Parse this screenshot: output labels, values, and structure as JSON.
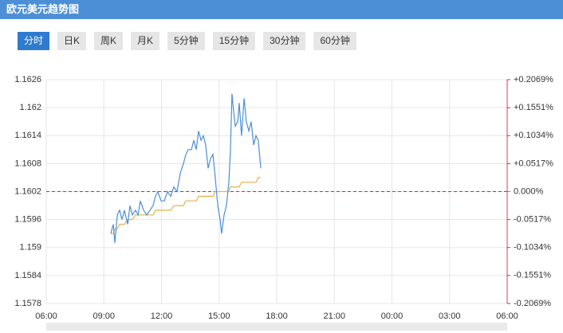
{
  "chart_data": {
    "type": "line",
    "title": "欧元美元趋势图",
    "tabs": [
      "分时",
      "日K",
      "周K",
      "月K",
      "5分钟",
      "15分钟",
      "30分钟",
      "60分钟"
    ],
    "active_tab": 0,
    "x": [
      3.36,
      3.49,
      3.57,
      3.7,
      3.82,
      3.94,
      4.07,
      4.24,
      4.36,
      4.48,
      4.65,
      4.78,
      4.9,
      5.07,
      5.23,
      5.4,
      5.56,
      5.69,
      5.81,
      5.98,
      6.15,
      6.31,
      6.48,
      6.64,
      6.81,
      6.98,
      7.14,
      7.27,
      7.39,
      7.56,
      7.68,
      7.81,
      7.93,
      8.06,
      8.18,
      8.3,
      8.43,
      8.55,
      8.68,
      8.8,
      8.93,
      9.05,
      9.13,
      9.26,
      9.38,
      9.51,
      9.59,
      9.67,
      9.76,
      9.84,
      9.97,
      10.05,
      10.17,
      10.3,
      10.42,
      10.55,
      10.67,
      10.8,
      10.92,
      11.04,
      11.17
    ],
    "series": [
      {
        "color": "#4a8fd8",
        "values": [
          1.1593,
          1.1595,
          1.1591,
          1.1597,
          1.1598,
          1.1596,
          1.1598,
          1.1595,
          1.1599,
          1.1597,
          1.1598,
          1.1597,
          1.16,
          1.1598,
          1.1597,
          1.1598,
          1.1599,
          1.1601,
          1.1602,
          1.16,
          1.16,
          1.1602,
          1.1601,
          1.1603,
          1.1602,
          1.1606,
          1.1608,
          1.161,
          1.1611,
          1.1611,
          1.1613,
          1.1611,
          1.1615,
          1.1613,
          1.1614,
          1.1612,
          1.1607,
          1.1609,
          1.161,
          1.1605,
          1.1599,
          1.1596,
          1.1593,
          1.1597,
          1.1599,
          1.1604,
          1.1611,
          1.1623,
          1.1619,
          1.1616,
          1.1617,
          1.1621,
          1.1614,
          1.1622,
          1.1617,
          1.1615,
          1.1617,
          1.1612,
          1.1614,
          1.1613,
          1.1607
        ]
      },
      {
        "color": "#e8b04a",
        "values": [
          1.1593,
          1.1593,
          1.1594,
          1.1594,
          1.1595,
          1.1595,
          1.1595,
          1.1596,
          1.1596,
          1.1596,
          1.1597,
          1.1597,
          1.1597,
          1.1597,
          1.1597,
          1.1597,
          1.1597,
          1.1598,
          1.1598,
          1.1598,
          1.1598,
          1.1598,
          1.1598,
          1.1599,
          1.1599,
          1.1599,
          1.1599,
          1.16,
          1.16,
          1.16,
          1.16,
          1.16,
          1.1601,
          1.1601,
          1.1601,
          1.1601,
          1.1601,
          1.1601,
          1.1601,
          1.1602,
          1.1602,
          1.1602,
          1.1602,
          1.1602,
          1.1602,
          1.1602,
          1.1603,
          1.1603,
          1.1603,
          1.1603,
          1.1603,
          1.1603,
          1.1604,
          1.1604,
          1.1604,
          1.1604,
          1.1604,
          1.1604,
          1.1604,
          1.1605,
          1.1605
        ]
      }
    ],
    "reference_line": 1.1602,
    "reference_color": "#d9262c",
    "xlim": [
      0,
      24
    ],
    "xticks": [
      {
        "value": 0,
        "label": "06:00"
      },
      {
        "value": 3,
        "label": "09:00"
      },
      {
        "value": 6,
        "label": "12:00"
      },
      {
        "value": 9,
        "label": "15:00"
      },
      {
        "value": 12,
        "label": "18:00"
      },
      {
        "value": 15,
        "label": "21:00"
      },
      {
        "value": 18,
        "label": "00:00"
      },
      {
        "value": 21,
        "label": "03:00"
      },
      {
        "value": 24,
        "label": "06:00"
      }
    ],
    "ylim": [
      1.1578,
      1.1626
    ],
    "yticks": [
      1.1578,
      1.1584,
      1.159,
      1.1596,
      1.1602,
      1.1608,
      1.1614,
      1.162,
      1.1626
    ],
    "y2lim": [
      -0.2069,
      0.2069
    ],
    "y2ticks": [
      {
        "value": -0.2069,
        "label": "-0.2069%"
      },
      {
        "value": -0.1551,
        "label": "-0.1551%"
      },
      {
        "value": -0.1034,
        "label": "-0.1034%"
      },
      {
        "value": -0.0517,
        "label": "-0.0517%"
      },
      {
        "value": 0,
        "label": "0.000%"
      },
      {
        "value": 0.0517,
        "label": "+0.0517%"
      },
      {
        "value": 0.1034,
        "label": "+0.1034%"
      },
      {
        "value": 0.1551,
        "label": "+0.1551%"
      },
      {
        "value": 0.2069,
        "label": "+0.2069%"
      }
    ],
    "up_color": "#d9262c",
    "down_color": "#2a8a2a",
    "grid": true
  }
}
